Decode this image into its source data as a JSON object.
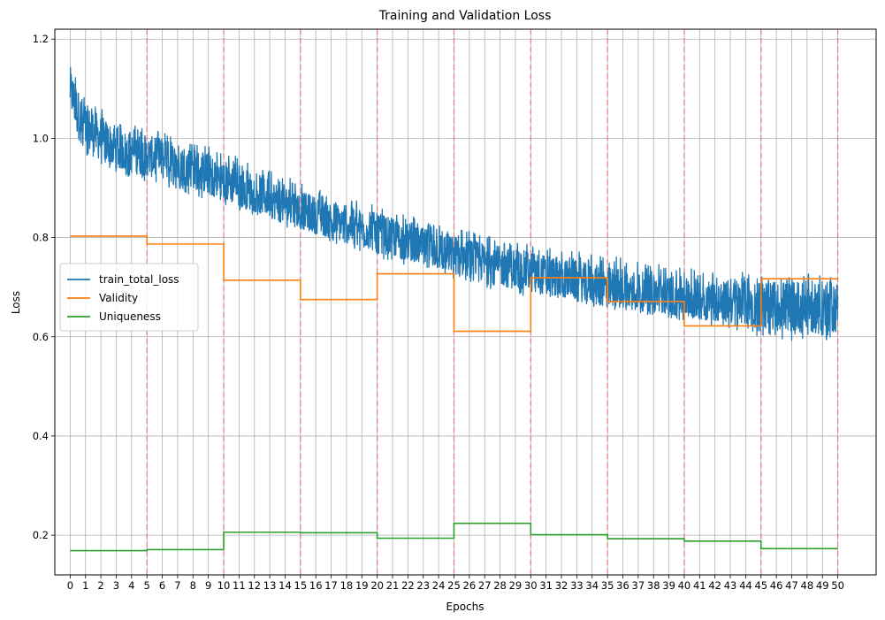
{
  "chart_data": {
    "type": "line",
    "title": "Training and Validation Loss",
    "xlabel": "Epochs",
    "ylabel": "Loss",
    "xlim": [
      -1,
      52.5
    ],
    "ylim": [
      0.12,
      1.22
    ],
    "xticks": [
      0,
      1,
      2,
      3,
      4,
      5,
      6,
      7,
      8,
      9,
      10,
      11,
      12,
      13,
      14,
      15,
      16,
      17,
      18,
      19,
      20,
      21,
      22,
      23,
      24,
      25,
      26,
      27,
      28,
      29,
      30,
      31,
      32,
      33,
      34,
      35,
      36,
      37,
      38,
      39,
      40,
      41,
      42,
      43,
      44,
      45,
      46,
      47,
      48,
      49,
      50
    ],
    "yticks": [
      0.2,
      0.4,
      0.6,
      0.8,
      1.0,
      1.2
    ],
    "ytick_labels": [
      "0.2",
      "0.4",
      "0.6",
      "0.8",
      "1.0",
      "1.2"
    ],
    "grid": true,
    "legend_position": "center-left",
    "vlines": {
      "x": [
        5,
        10,
        15,
        20,
        25,
        30,
        35,
        40,
        45,
        50
      ],
      "color": "#e8787a",
      "style": "dashed"
    },
    "series": [
      {
        "name": "train_total_loss",
        "color": "#1f77b4",
        "kind": "noisy-band",
        "x": [
          0,
          0.5,
          1,
          2,
          3,
          4,
          5,
          7.5,
          10,
          12.5,
          15,
          17.5,
          20,
          22.5,
          25,
          27.5,
          30,
          32.5,
          35,
          37.5,
          40,
          42.5,
          45,
          47.5,
          50
        ],
        "y_mean": [
          1.1,
          1.05,
          1.02,
          1.0,
          0.98,
          0.97,
          0.965,
          0.945,
          0.915,
          0.885,
          0.855,
          0.83,
          0.81,
          0.785,
          0.765,
          0.745,
          0.73,
          0.715,
          0.7,
          0.69,
          0.68,
          0.67,
          0.665,
          0.66,
          0.66
        ],
        "y_min": [
          1.05,
          0.99,
          0.96,
          0.94,
          0.93,
          0.92,
          0.91,
          0.89,
          0.865,
          0.84,
          0.81,
          0.785,
          0.76,
          0.74,
          0.715,
          0.695,
          0.68,
          0.67,
          0.655,
          0.645,
          0.63,
          0.62,
          0.6,
          0.59,
          0.59
        ],
        "y_max": [
          1.17,
          1.12,
          1.09,
          1.06,
          1.04,
          1.03,
          1.02,
          1.0,
          0.975,
          0.945,
          0.91,
          0.885,
          0.865,
          0.84,
          0.82,
          0.8,
          0.79,
          0.775,
          0.765,
          0.75,
          0.74,
          0.73,
          0.73,
          0.73,
          0.73
        ]
      },
      {
        "name": "Validity",
        "color": "#ff7f0e",
        "kind": "step",
        "segments": [
          {
            "x0": 0,
            "x1": 5,
            "y": 0.803
          },
          {
            "x0": 5,
            "x1": 10,
            "y": 0.787
          },
          {
            "x0": 10,
            "x1": 15,
            "y": 0.714
          },
          {
            "x0": 15,
            "x1": 20,
            "y": 0.675
          },
          {
            "x0": 20,
            "x1": 25,
            "y": 0.727
          },
          {
            "x0": 25,
            "x1": 30,
            "y": 0.611
          },
          {
            "x0": 30,
            "x1": 35,
            "y": 0.719
          },
          {
            "x0": 35,
            "x1": 40,
            "y": 0.671
          },
          {
            "x0": 40,
            "x1": 45,
            "y": 0.622
          },
          {
            "x0": 45,
            "x1": 50,
            "y": 0.717
          }
        ]
      },
      {
        "name": "Uniqueness",
        "color": "#2ca02c",
        "kind": "step",
        "segments": [
          {
            "x0": 0,
            "x1": 5,
            "y": 0.169
          },
          {
            "x0": 5,
            "x1": 10,
            "y": 0.171
          },
          {
            "x0": 10,
            "x1": 15,
            "y": 0.206
          },
          {
            "x0": 15,
            "x1": 20,
            "y": 0.205
          },
          {
            "x0": 20,
            "x1": 25,
            "y": 0.194
          },
          {
            "x0": 25,
            "x1": 30,
            "y": 0.224
          },
          {
            "x0": 30,
            "x1": 35,
            "y": 0.201
          },
          {
            "x0": 35,
            "x1": 40,
            "y": 0.193
          },
          {
            "x0": 40,
            "x1": 45,
            "y": 0.188
          },
          {
            "x0": 45,
            "x1": 50,
            "y": 0.173
          }
        ]
      }
    ]
  }
}
